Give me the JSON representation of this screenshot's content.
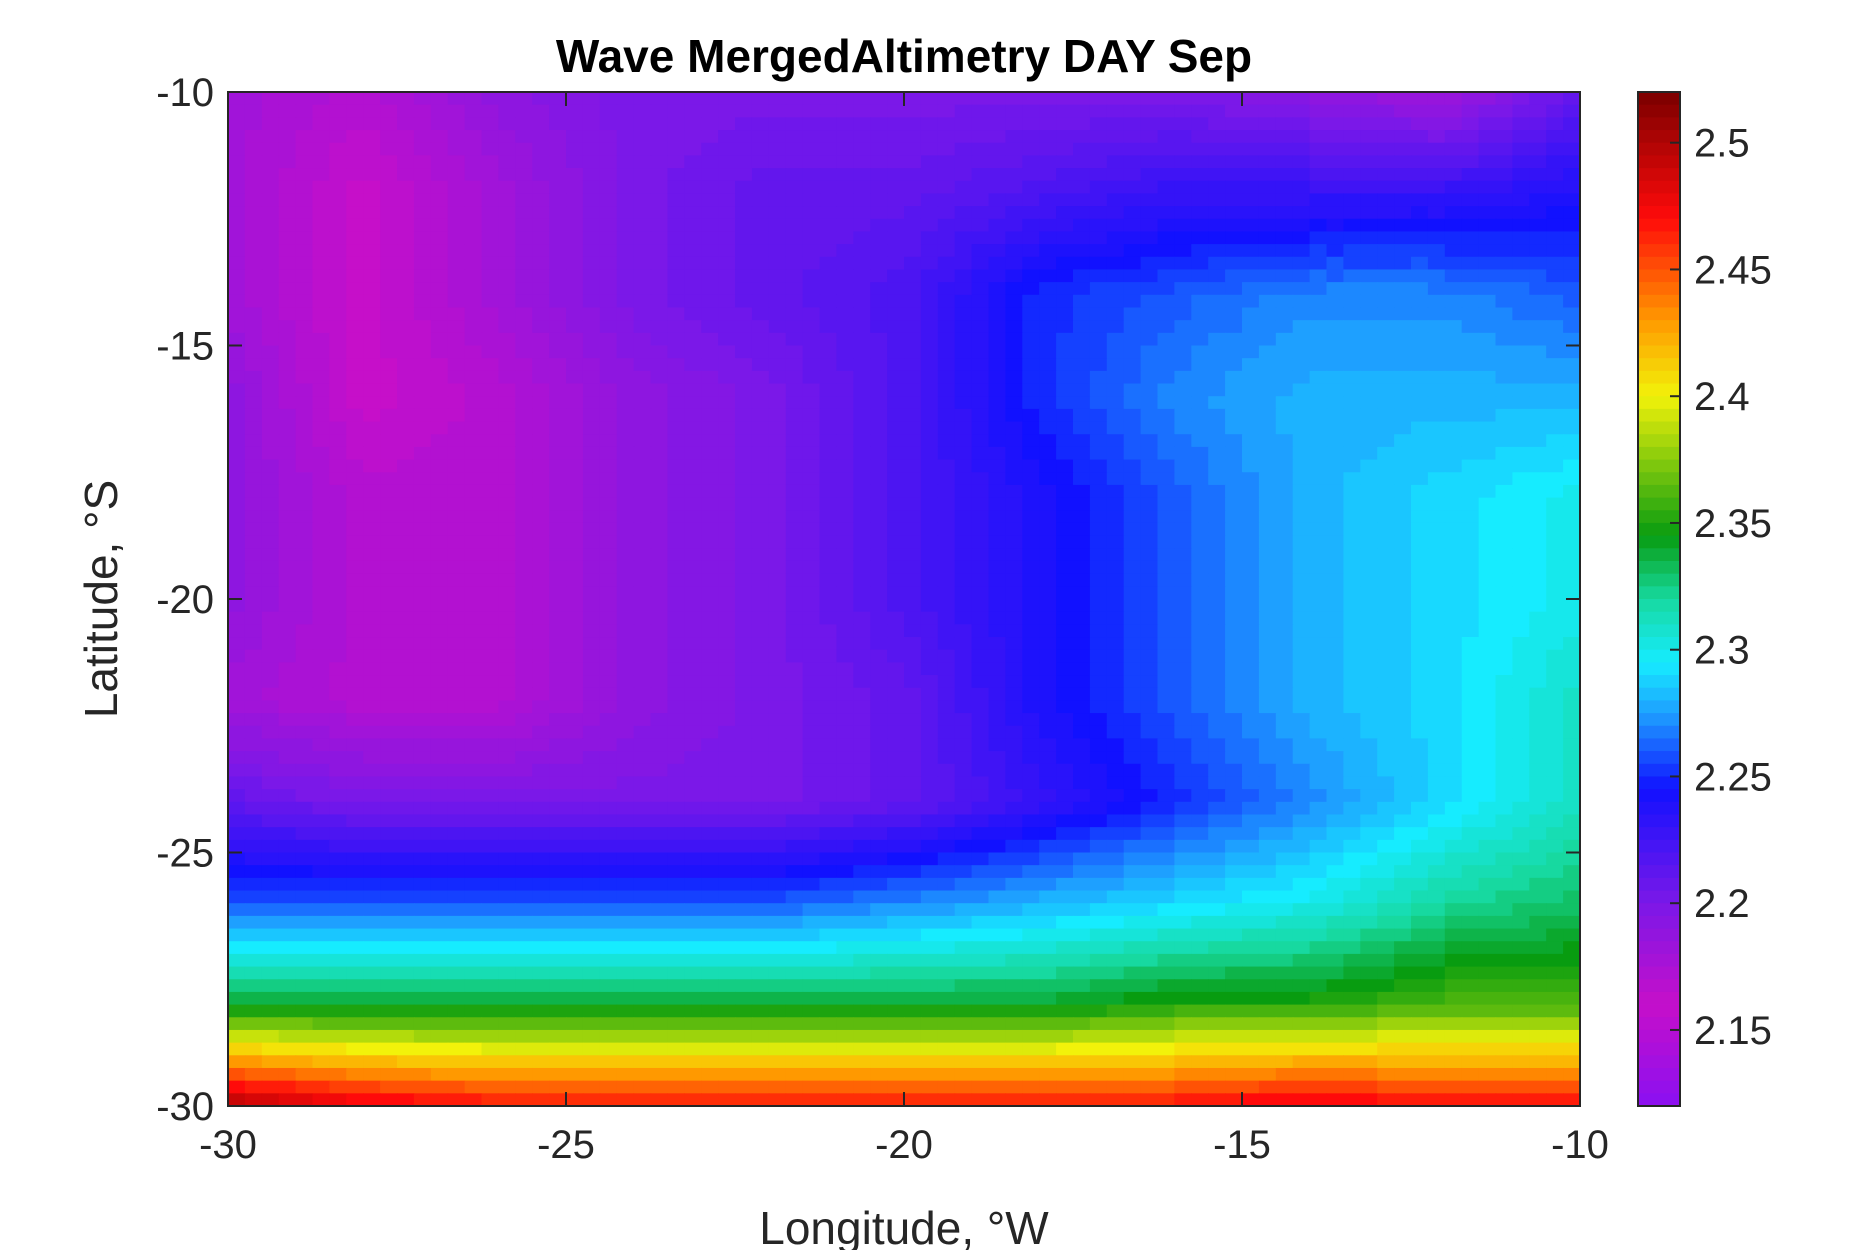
{
  "chart_data": {
    "type": "heatmap",
    "subtype": "filled-contour",
    "title": "Wave MergedAltimetry DAY Sep",
    "xlabel": "Longitude, °W",
    "ylabel": "Latitude, °S",
    "xlim": [
      -30,
      -10
    ],
    "ylim": [
      -30,
      -10
    ],
    "x_ticks": [
      -30,
      -25,
      -20,
      -15,
      -10
    ],
    "x_tick_labels": [
      "-30",
      "-25",
      "-20",
      "-15",
      "-10"
    ],
    "y_ticks": [
      -10,
      -15,
      -20,
      -25,
      -30
    ],
    "y_tick_labels": [
      "-10",
      "-15",
      "-20",
      "-25",
      "-30"
    ],
    "colorbar": {
      "range": [
        2.12,
        2.52
      ],
      "ticks": [
        2.15,
        2.2,
        2.25,
        2.3,
        2.35,
        2.4,
        2.45,
        2.5
      ],
      "tick_labels": [
        "2.15",
        "2.2",
        "2.25",
        "2.3",
        "2.35",
        "2.4",
        "2.45",
        "2.5"
      ],
      "colormap": "jet-like (purple-magenta-blue-cyan-green-yellow-red)",
      "stops": [
        {
          "value": 2.12,
          "color": "#8a10f2"
        },
        {
          "value": 2.16,
          "color": "#c60fc9"
        },
        {
          "value": 2.2,
          "color": "#7b18e8"
        },
        {
          "value": 2.245,
          "color": "#1111ff"
        },
        {
          "value": 2.275,
          "color": "#1ea0ff"
        },
        {
          "value": 2.295,
          "color": "#16ecff"
        },
        {
          "value": 2.32,
          "color": "#17d9a0"
        },
        {
          "value": 2.345,
          "color": "#089c10"
        },
        {
          "value": 2.4,
          "color": "#f2f20a"
        },
        {
          "value": 2.43,
          "color": "#ff9900"
        },
        {
          "value": 2.47,
          "color": "#ff0a0a"
        },
        {
          "value": 2.52,
          "color": "#7a0000"
        }
      ]
    },
    "grid_lat": [
      -10,
      -12,
      -14,
      -16,
      -18,
      -20,
      -22,
      -24,
      -26,
      -28,
      -30
    ],
    "grid_lon": [
      -30,
      -28,
      -26,
      -24,
      -22,
      -20,
      -18,
      -16,
      -14,
      -12,
      -10
    ],
    "values": [
      [
        2.18,
        2.17,
        2.19,
        2.2,
        2.2,
        2.2,
        2.2,
        2.2,
        2.19,
        2.18,
        2.21
      ],
      [
        2.18,
        2.16,
        2.18,
        2.2,
        2.21,
        2.21,
        2.22,
        2.23,
        2.23,
        2.23,
        2.24
      ],
      [
        2.18,
        2.16,
        2.18,
        2.2,
        2.21,
        2.22,
        2.25,
        2.26,
        2.27,
        2.27,
        2.26
      ],
      [
        2.19,
        2.16,
        2.17,
        2.19,
        2.2,
        2.22,
        2.25,
        2.27,
        2.28,
        2.28,
        2.28
      ],
      [
        2.19,
        2.17,
        2.17,
        2.19,
        2.2,
        2.22,
        2.24,
        2.26,
        2.28,
        2.29,
        2.3
      ],
      [
        2.19,
        2.17,
        2.17,
        2.19,
        2.2,
        2.22,
        2.24,
        2.26,
        2.28,
        2.29,
        2.3
      ],
      [
        2.18,
        2.17,
        2.17,
        2.19,
        2.2,
        2.21,
        2.24,
        2.26,
        2.28,
        2.29,
        2.31
      ],
      [
        2.21,
        2.2,
        2.2,
        2.2,
        2.2,
        2.21,
        2.23,
        2.25,
        2.27,
        2.29,
        2.31
      ],
      [
        2.26,
        2.26,
        2.26,
        2.26,
        2.26,
        2.27,
        2.28,
        2.29,
        2.3,
        2.32,
        2.33
      ],
      [
        2.34,
        2.34,
        2.34,
        2.34,
        2.34,
        2.34,
        2.34,
        2.35,
        2.35,
        2.36,
        2.36
      ],
      [
        2.5,
        2.48,
        2.47,
        2.47,
        2.47,
        2.47,
        2.47,
        2.47,
        2.48,
        2.47,
        2.47
      ]
    ]
  }
}
